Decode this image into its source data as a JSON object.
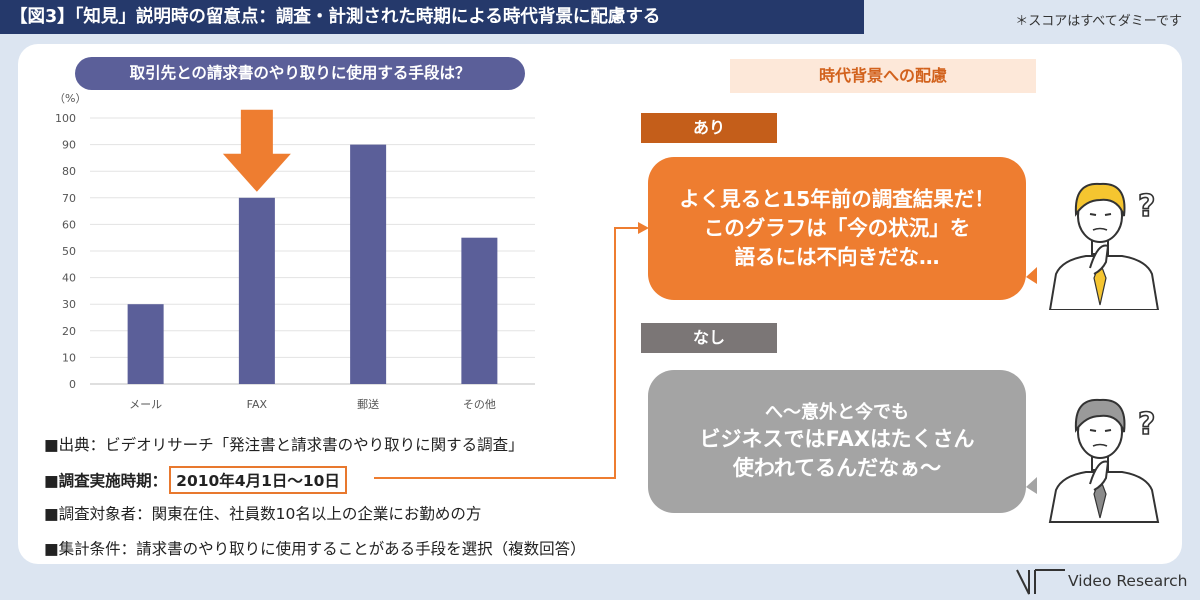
{
  "header": {
    "title": "【図3】「知見」説明時の留意点：調査・計測された時期による時代背景に配慮する",
    "note": "＊スコアはすべてダミーです"
  },
  "chart": {
    "title": "取引先との請求書のやり取りに使用する手段は？"
  },
  "chart_data": {
    "type": "bar",
    "title": "取引先との請求書のやり取りに使用する手段は？",
    "ylabel": "（%）",
    "categories": [
      "メール",
      "FAX",
      "郵送",
      "その他"
    ],
    "values": [
      30,
      70,
      90,
      55
    ],
    "ylim": [
      0,
      100
    ],
    "yticks": [
      0,
      10,
      20,
      30,
      40,
      50,
      60,
      70,
      80,
      90,
      100
    ],
    "grid": true,
    "highlight": "FAX",
    "bar_color": "#5b5f99",
    "arrow_color": "#ee7d30"
  },
  "info": {
    "source": "■出典：ビデオリサーチ「発注書と請求書のやり取りに関する調査」",
    "period_label": "■調査実施時期：",
    "period_value": "2010年4月1日〜10日",
    "target": "■調査対象者：関東在住、社員数10名以上の企業にお勤めの方",
    "condition": "■集計条件：請求書のやり取りに使用することがある手段を選択（複数回答）"
  },
  "right": {
    "considerations": "時代背景への配慮",
    "yes_tag": "あり",
    "yes_lines": [
      "よく見ると15年前の調査結果だ！",
      "このグラフは「今の状況」を",
      "語るには不向きだな…"
    ],
    "no_tag": "なし",
    "no_lines": [
      "へ〜意外と今でも",
      "ビジネスではFAXはたくさん",
      "使われてるんだなぁ〜"
    ]
  },
  "footer": {
    "logo_text": "Video Research"
  },
  "colors": {
    "navy": "#25396b",
    "orange": "#ee7d30",
    "gray": "#a4a4a4"
  }
}
